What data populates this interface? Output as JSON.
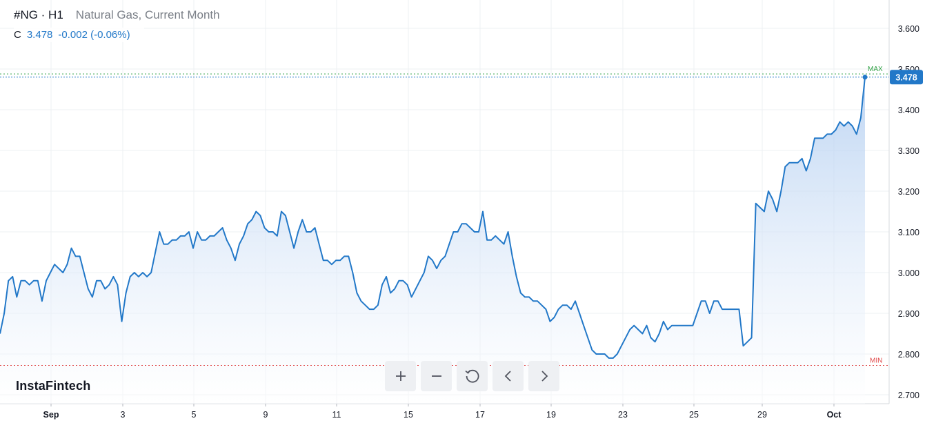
{
  "header": {
    "symbol": "#NG · H1",
    "description": "Natural Gas, Current Month",
    "price_label": "C",
    "last_price": "3.478",
    "change": "-0.002 (-0.06%)"
  },
  "brand": "InstaFintech",
  "toolbar": {
    "buttons": [
      {
        "name": "zoom-in",
        "icon": "plus-icon"
      },
      {
        "name": "zoom-out",
        "icon": "minus-icon"
      },
      {
        "name": "reset",
        "icon": "reset-icon"
      },
      {
        "name": "scroll-left",
        "icon": "chevron-left-icon"
      },
      {
        "name": "scroll-right",
        "icon": "chevron-right-icon"
      }
    ]
  },
  "colors": {
    "line": "#2278c8",
    "fill_top": "#a9c8ef",
    "fill_bottom": "#ffffff",
    "max_marker": "#2ea043",
    "min_marker": "#e04848",
    "price_badge": "#2278c8",
    "grid": "#eef0f3",
    "axis_text": "#131722"
  },
  "chart_data": {
    "type": "area",
    "x_tick_labels": [
      "Sep",
      "3",
      "5",
      "9",
      "11",
      "15",
      "17",
      "19",
      "23",
      "25",
      "29",
      "Oct"
    ],
    "y_ticks": [
      "3.600",
      "3.500",
      "3.400",
      "3.300",
      "3.200",
      "3.100",
      "3.000",
      "2.900",
      "2.800",
      "2.700"
    ],
    "ylim": [
      2.69,
      3.66
    ],
    "last_value_label": "3.478",
    "max_label": "MAX",
    "min_label": "MIN",
    "max_value": 3.488,
    "min_value": 2.772,
    "grid": true,
    "series": [
      {
        "values": [
          2.85,
          2.9,
          2.98,
          2.99,
          2.94,
          2.98,
          2.98,
          2.97,
          2.98,
          2.98,
          2.93,
          2.98,
          3.0,
          3.02,
          3.01,
          3.0,
          3.02,
          3.06,
          3.04,
          3.04,
          3.0,
          2.96,
          2.94,
          2.98,
          2.98,
          2.96,
          2.97,
          2.99,
          2.97,
          2.88,
          2.95,
          2.99,
          3.0,
          2.99,
          3.0,
          2.99,
          3.0,
          3.05,
          3.1,
          3.07,
          3.07,
          3.08,
          3.08,
          3.09,
          3.09,
          3.1,
          3.06,
          3.1,
          3.08,
          3.08,
          3.09,
          3.09,
          3.1,
          3.11,
          3.08,
          3.06,
          3.03,
          3.07,
          3.09,
          3.12,
          3.13,
          3.15,
          3.14,
          3.11,
          3.1,
          3.1,
          3.09,
          3.15,
          3.14,
          3.1,
          3.06,
          3.1,
          3.13,
          3.1,
          3.1,
          3.11,
          3.07,
          3.03,
          3.03,
          3.02,
          3.03,
          3.03,
          3.04,
          3.04,
          3.0,
          2.95,
          2.93,
          2.92,
          2.91,
          2.91,
          2.92,
          2.97,
          2.99,
          2.95,
          2.96,
          2.98,
          2.98,
          2.97,
          2.94,
          2.96,
          2.98,
          3.0,
          3.04,
          3.03,
          3.01,
          3.03,
          3.04,
          3.07,
          3.1,
          3.1,
          3.12,
          3.12,
          3.11,
          3.1,
          3.1,
          3.15,
          3.08,
          3.08,
          3.09,
          3.08,
          3.07,
          3.1,
          3.04,
          2.99,
          2.95,
          2.94,
          2.94,
          2.93,
          2.93,
          2.92,
          2.91,
          2.88,
          2.89,
          2.91,
          2.92,
          2.92,
          2.91,
          2.93,
          2.9,
          2.87,
          2.84,
          2.81,
          2.8,
          2.8,
          2.8,
          2.79,
          2.79,
          2.8,
          2.82,
          2.84,
          2.86,
          2.87,
          2.86,
          2.85,
          2.87,
          2.84,
          2.83,
          2.85,
          2.88,
          2.86,
          2.87,
          2.87,
          2.87,
          2.87,
          2.87,
          2.87,
          2.9,
          2.93,
          2.93,
          2.9,
          2.93,
          2.93,
          2.91,
          2.91,
          2.91,
          2.91,
          2.91,
          2.82,
          2.83,
          2.84,
          3.17,
          3.16,
          3.15,
          3.2,
          3.18,
          3.15,
          3.2,
          3.26,
          3.27,
          3.27,
          3.27,
          3.28,
          3.25,
          3.28,
          3.33,
          3.33,
          3.33,
          3.34,
          3.34,
          3.35,
          3.37,
          3.36,
          3.37,
          3.36,
          3.34,
          3.38,
          3.48
        ]
      }
    ]
  }
}
